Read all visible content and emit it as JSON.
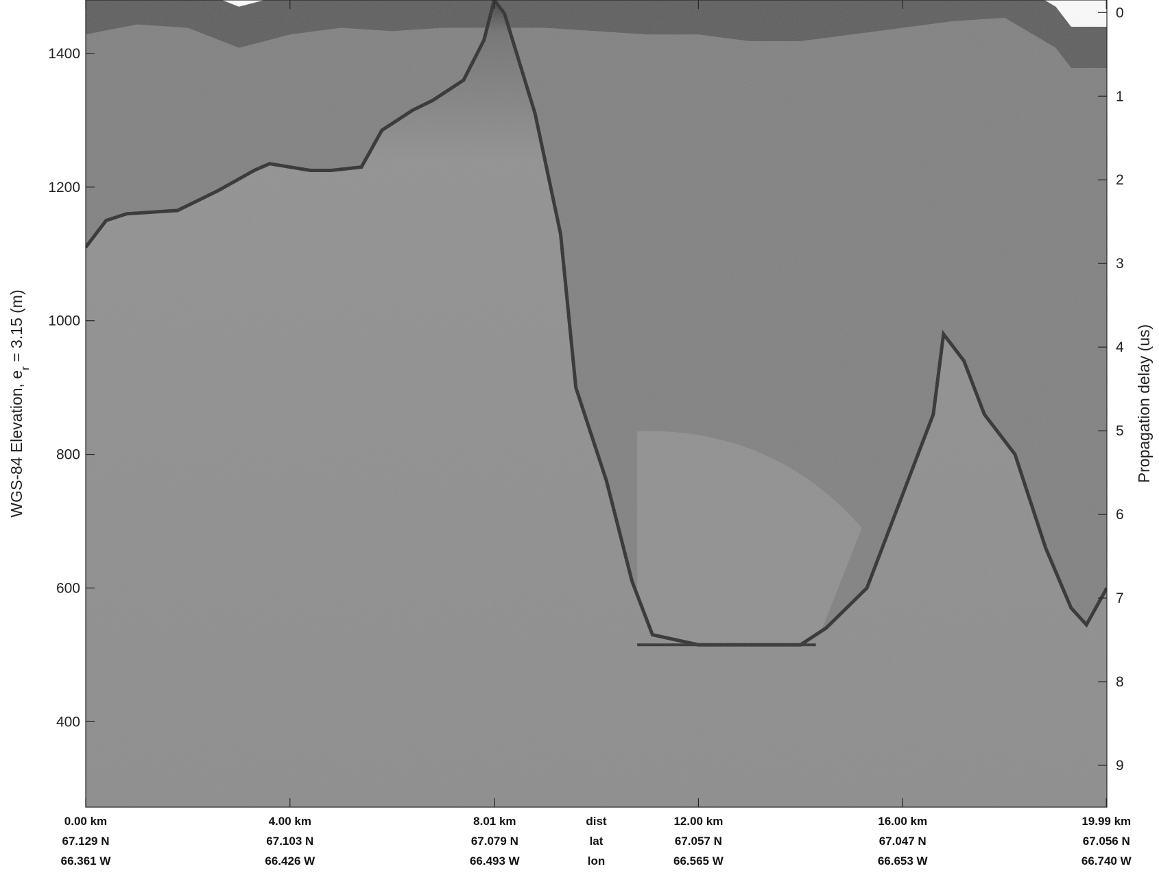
{
  "chart_data": {
    "type": "heatmap",
    "description_colormap": "grayscale",
    "y_left": {
      "label_prefix": "WGS-84 Elevation, e",
      "label_sub": "r",
      "label_suffix": " = 3.15 (m)",
      "lim": [
        272,
        1480
      ],
      "ticks": [
        400,
        600,
        800,
        1000,
        1200,
        1400
      ]
    },
    "y_right": {
      "label": "Propagation delay (us)",
      "lim": [
        -0.15,
        9.5
      ],
      "ticks": [
        0,
        1,
        2,
        3,
        4,
        5,
        6,
        7,
        8,
        9
      ]
    },
    "x": {
      "lim": [
        0,
        20
      ],
      "ticks": [
        0,
        4,
        8.01,
        12,
        16,
        19.99
      ],
      "row_labels": [
        "dist",
        "lat",
        "lon"
      ],
      "dist": [
        "0.00 km",
        "4.00 km",
        "8.01 km",
        "12.00 km",
        "16.00 km",
        "19.99 km"
      ],
      "lat": [
        "67.129 N",
        "67.103 N",
        "67.079 N",
        "67.057 N",
        "67.047 N",
        "67.056 N"
      ],
      "lon": [
        "66.361 W",
        "66.426 W",
        "66.493 W",
        "66.565 W",
        "66.653 W",
        "66.740 W"
      ]
    },
    "bed_elevation": {
      "x_km": [
        0,
        0.4,
        0.8,
        1.8,
        2.6,
        3.3,
        3.6,
        4.4,
        4.8,
        5.4,
        5.8,
        6.4,
        6.8,
        7.4,
        7.8,
        8.0,
        8.2,
        8.8,
        9.3,
        9.6,
        10.2,
        10.7,
        11.1,
        12.0,
        13.0,
        14.0,
        14.5,
        15.3,
        15.8,
        16.6,
        16.8,
        17.2,
        17.6,
        18.2,
        18.8,
        19.3,
        19.6,
        20.0
      ],
      "z_m": [
        1110,
        1150,
        1160,
        1165,
        1195,
        1225,
        1235,
        1225,
        1225,
        1230,
        1285,
        1315,
        1330,
        1360,
        1420,
        1480,
        1460,
        1310,
        1130,
        900,
        760,
        610,
        530,
        515,
        515,
        515,
        540,
        600,
        700,
        860,
        980,
        940,
        860,
        800,
        660,
        570,
        545,
        600
      ]
    },
    "lake_surface": {
      "x_km": [
        10.8,
        14.3
      ],
      "z_m": 515
    },
    "ice_surface": {
      "x_km": [
        0,
        1,
        2,
        3,
        4,
        5,
        6,
        7,
        8,
        9,
        10,
        11,
        12,
        13,
        14,
        15,
        16,
        17,
        18,
        19,
        19.3,
        20
      ],
      "z_m": [
        1490,
        1505,
        1500,
        1470,
        1490,
        1500,
        1495,
        1500,
        1500,
        1500,
        1495,
        1490,
        1490,
        1480,
        1480,
        1490,
        1500,
        1510,
        1515,
        1470,
        1440,
        1440
      ]
    }
  }
}
